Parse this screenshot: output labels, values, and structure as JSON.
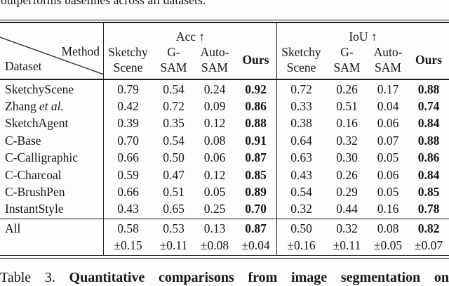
{
  "context": {
    "top_text": "outperforms baselines across all datasets.",
    "caption": {
      "prefix": "Table 3.",
      "text": "Quantitative comparisons from image segmentation on"
    }
  },
  "table": {
    "corner": {
      "method_label": "Method",
      "dataset_label": "Dataset"
    },
    "group_headers": [
      "Acc ↑",
      "IoU ↑"
    ],
    "method_columns": [
      {
        "line1": "Sketchy",
        "line2": "Scene"
      },
      {
        "line1": "G-",
        "line2": "SAM"
      },
      {
        "line1": "Auto-",
        "line2": "SAM"
      },
      {
        "line1": "Ours",
        "line2": ""
      }
    ],
    "rows": [
      {
        "dataset": "SketchyScene",
        "dataset_italic": "",
        "acc": [
          "0.79",
          "0.54",
          "0.24",
          "0.92"
        ],
        "iou": [
          "0.72",
          "0.26",
          "0.17",
          "0.88"
        ]
      },
      {
        "dataset": "Zhang",
        "dataset_italic": "et al.",
        "acc": [
          "0.42",
          "0.72",
          "0.09",
          "0.86"
        ],
        "iou": [
          "0.33",
          "0.51",
          "0.04",
          "0.74"
        ]
      },
      {
        "dataset": "SketchAgent",
        "dataset_italic": "",
        "acc": [
          "0.39",
          "0.35",
          "0.12",
          "0.88"
        ],
        "iou": [
          "0.38",
          "0.16",
          "0.06",
          "0.84"
        ]
      },
      {
        "dataset": "C-Base",
        "dataset_italic": "",
        "acc": [
          "0.70",
          "0.54",
          "0.08",
          "0.91"
        ],
        "iou": [
          "0.64",
          "0.32",
          "0.07",
          "0.88"
        ]
      },
      {
        "dataset": "C-Calligraphic",
        "dataset_italic": "",
        "acc": [
          "0.66",
          "0.50",
          "0.06",
          "0.87"
        ],
        "iou": [
          "0.63",
          "0.30",
          "0.05",
          "0.86"
        ]
      },
      {
        "dataset": "C-Charcoal",
        "dataset_italic": "",
        "acc": [
          "0.59",
          "0.47",
          "0.12",
          "0.85"
        ],
        "iou": [
          "0.43",
          "0.26",
          "0.06",
          "0.84"
        ]
      },
      {
        "dataset": "C-BrushPen",
        "dataset_italic": "",
        "acc": [
          "0.66",
          "0.51",
          "0.05",
          "0.89"
        ],
        "iou": [
          "0.54",
          "0.29",
          "0.05",
          "0.85"
        ]
      },
      {
        "dataset": "InstantStyle",
        "dataset_italic": "",
        "acc": [
          "0.43",
          "0.65",
          "0.25",
          "0.70"
        ],
        "iou": [
          "0.32",
          "0.44",
          "0.16",
          "0.78"
        ]
      }
    ],
    "summary": {
      "dataset": "All",
      "acc_mean": [
        "0.58",
        "0.53",
        "0.13",
        "0.87"
      ],
      "acc_std": [
        "±0.15",
        "±0.11",
        "±0.08",
        "±0.04"
      ],
      "iou_mean": [
        "0.50",
        "0.32",
        "0.08",
        "0.82"
      ],
      "iou_std": [
        "±0.16",
        "±0.11",
        "±0.05",
        "±0.07"
      ]
    }
  }
}
